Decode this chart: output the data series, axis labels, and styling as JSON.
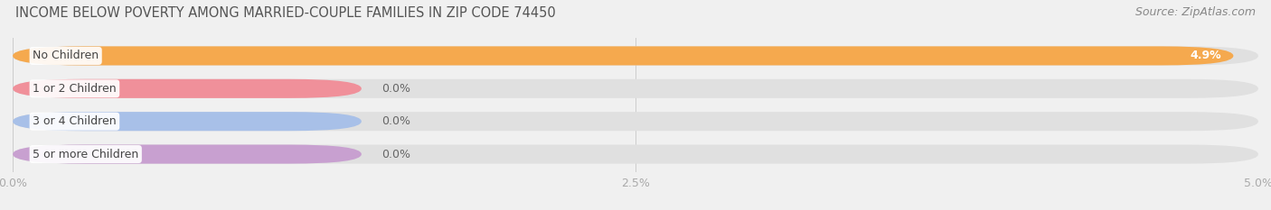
{
  "title": "INCOME BELOW POVERTY AMONG MARRIED-COUPLE FAMILIES IN ZIP CODE 74450",
  "source": "Source: ZipAtlas.com",
  "categories": [
    "No Children",
    "1 or 2 Children",
    "3 or 4 Children",
    "5 or more Children"
  ],
  "values": [
    4.9,
    0.0,
    0.0,
    0.0
  ],
  "bar_colors": [
    "#F5A94E",
    "#F0909A",
    "#A8C0E8",
    "#C8A0D0"
  ],
  "xlim": [
    0,
    5.0
  ],
  "xticks": [
    0.0,
    2.5,
    5.0
  ],
  "xtick_labels": [
    "0.0%",
    "2.5%",
    "5.0%"
  ],
  "bg_color": "#f0f0f0",
  "bar_bg_color": "#e0e0e0",
  "title_fontsize": 10.5,
  "source_fontsize": 9,
  "label_fontsize": 9,
  "value_fontsize": 9,
  "tick_fontsize": 9,
  "bar_height": 0.58,
  "small_bar_width": 1.4,
  "figsize": [
    14.06,
    2.33
  ],
  "dpi": 100
}
